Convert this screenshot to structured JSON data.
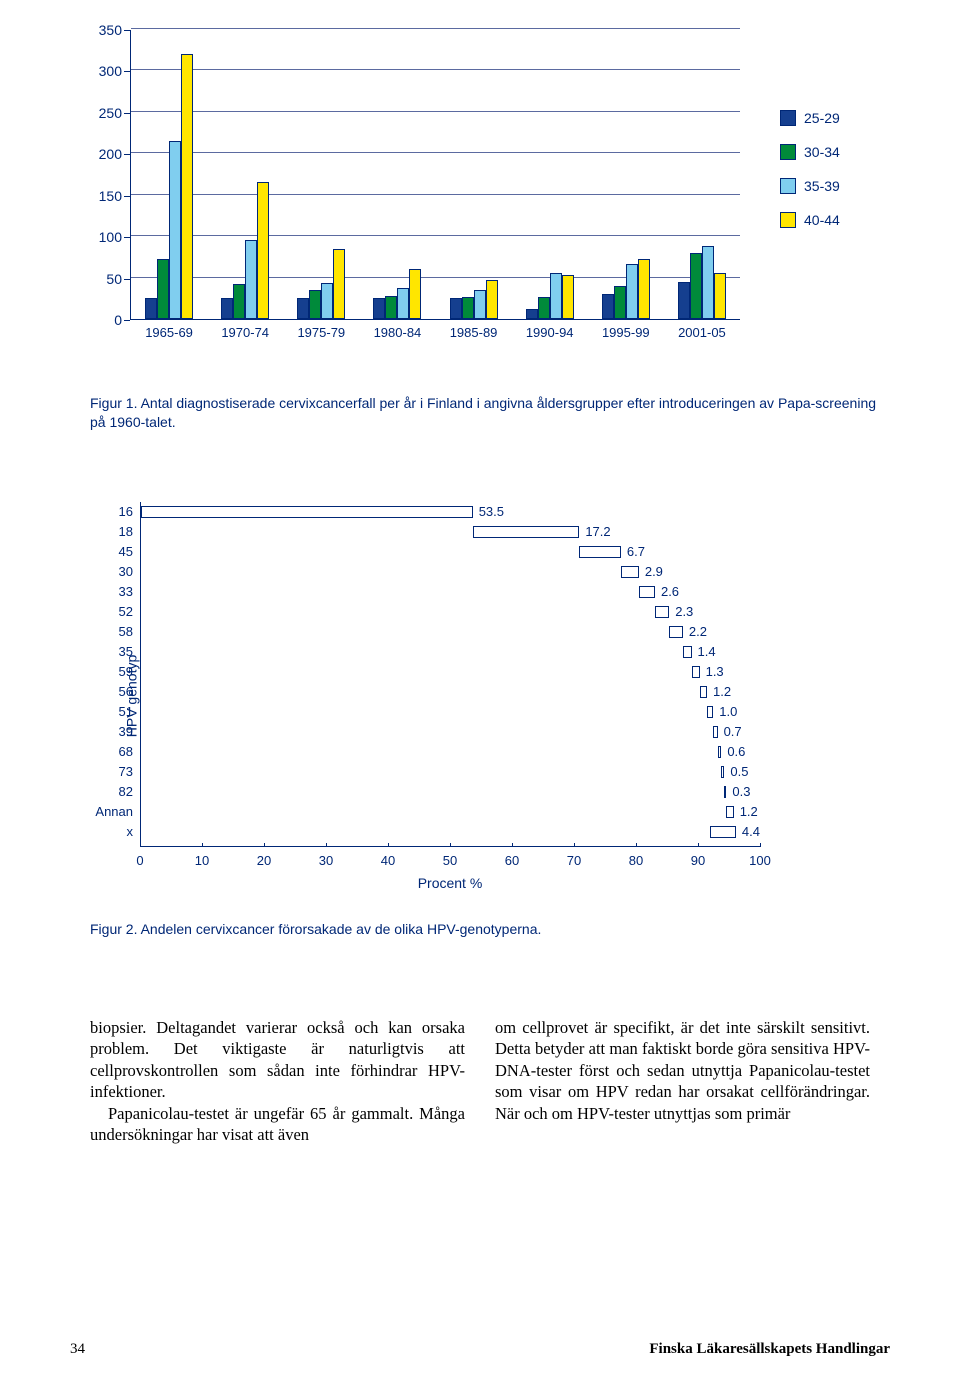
{
  "fig1": {
    "type": "bar-grouped",
    "ylim": [
      0,
      350
    ],
    "yticks": [
      0,
      50,
      100,
      150,
      200,
      250,
      300,
      350
    ],
    "gridlines": [
      50,
      100,
      150,
      200,
      250,
      300,
      350
    ],
    "categories": [
      "1965-69",
      "1970-74",
      "1975-79",
      "1980-84",
      "1985-89",
      "1990-94",
      "1995-99",
      "2001-05"
    ],
    "series": [
      {
        "label": "25-29",
        "color": "#153f8f",
        "values": [
          25,
          25,
          25,
          25,
          25,
          12,
          30,
          45
        ]
      },
      {
        "label": "30-34",
        "color": "#008a3a",
        "values": [
          73,
          42,
          35,
          28,
          27,
          27,
          40,
          80
        ]
      },
      {
        "label": "35-39",
        "color": "#80ceef",
        "values": [
          215,
          95,
          43,
          38,
          35,
          55,
          67,
          88
        ]
      },
      {
        "label": "40-44",
        "color": "#ffe600",
        "values": [
          320,
          165,
          85,
          60,
          47,
          53,
          73,
          55
        ]
      }
    ],
    "colors": {
      "axis": "#002776",
      "grid": "#5b6aa0",
      "text": "#002776"
    },
    "caption_label": "Figur 1.",
    "caption": "Antal diagnostiserade cervixcancerfall per år i Finland i angivna åldersgrupper efter introduceringen av Papa-screening på 1960-talet."
  },
  "fig2": {
    "type": "bar-horizontal-stacked",
    "ylabel": "HPV genotyp",
    "xlabel": "Procent %",
    "xlim": [
      0,
      100
    ],
    "xticks": [
      0,
      10,
      20,
      30,
      40,
      50,
      60,
      70,
      80,
      90,
      100
    ],
    "rows": [
      {
        "label": "16",
        "start": 0,
        "width": 53.5,
        "value": "53.5"
      },
      {
        "label": "18",
        "start": 53.5,
        "width": 17.2,
        "value": "17.2"
      },
      {
        "label": "45",
        "start": 70.7,
        "width": 6.7,
        "value": "6.7"
      },
      {
        "label": "30",
        "start": 77.4,
        "width": 2.9,
        "value": "2.9"
      },
      {
        "label": "33",
        "start": 80.3,
        "width": 2.6,
        "value": "2.6"
      },
      {
        "label": "52",
        "start": 82.9,
        "width": 2.3,
        "value": "2.3"
      },
      {
        "label": "58",
        "start": 85.2,
        "width": 2.2,
        "value": "2.2"
      },
      {
        "label": "35",
        "start": 87.4,
        "width": 1.4,
        "value": "1.4"
      },
      {
        "label": "59",
        "start": 88.8,
        "width": 1.3,
        "value": "1.3"
      },
      {
        "label": "56",
        "start": 90.1,
        "width": 1.2,
        "value": "1.2"
      },
      {
        "label": "51",
        "start": 91.3,
        "width": 1.0,
        "value": "1.0"
      },
      {
        "label": "39",
        "start": 92.3,
        "width": 0.7,
        "value": "0.7"
      },
      {
        "label": "68",
        "start": 93.0,
        "width": 0.6,
        "value": "0.6"
      },
      {
        "label": "73",
        "start": 93.6,
        "width": 0.5,
        "value": "0.5"
      },
      {
        "label": "82",
        "start": 94.1,
        "width": 0.3,
        "value": "0.3"
      },
      {
        "label": "Annan",
        "start": 94.4,
        "width": 1.2,
        "value": "1.2"
      },
      {
        "label": "x",
        "start": 95.6,
        "width": 4.4,
        "value": "4.4"
      }
    ],
    "bar_fill": "#ffffff",
    "bar_stroke": "#002776",
    "caption_label": "Figur 2.",
    "caption": "Andelen cervixcancer förorsakade av de olika HPV-genotyperna."
  },
  "body": {
    "col1": "biopsier. Deltagandet varierar också och kan orsaka problem. Det viktigaste är naturligtvis att cellprovskontrollen som sådan inte förhindrar HPV-infektioner.\n   Papanicolau-testet är ungefär 65 år gammalt. Många undersökningar har visat att även",
    "col2": "om cellprovet är specifikt, är det inte särskilt sensitivt. Detta betyder att man faktiskt borde göra sensitiva HPV-DNA-tester först och sedan utnyttja Papanicolau-testet som visar om HPV redan har orsakat cellförändringar. När och om HPV-tester utnyttjas som primär"
  },
  "footer": {
    "page": "34",
    "journal": "Finska Läkaresällskapets Handlingar"
  }
}
